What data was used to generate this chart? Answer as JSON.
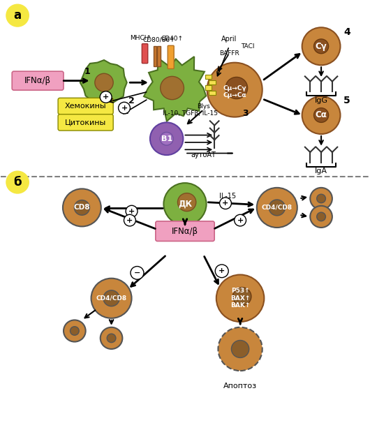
{
  "background_color": "#ffffff",
  "panel_a_label": "а",
  "panel_b_label": "б",
  "ifn_box_color": "#f0a0c0",
  "ifn_text": "IFNα/β",
  "cell_fill_outer": "#8db050",
  "cell_fill_inner": "#a07030",
  "chemokine_box_color": "#f5e642",
  "chemokine_text": "Хемокины",
  "cytokine_text": "Цитокины",
  "b1_color": "#9070b0",
  "b1_text": "B1",
  "autoat_text": "аутоАТ",
  "switch_text": "Cμ→Cγ\nCμ→Cα",
  "switch_num": "3",
  "label1": "1",
  "label2": "2",
  "label4": "4",
  "label5": "5",
  "IgG_text": "IgG",
  "IgA_text": "IgA",
  "Cy_text": "Cγ",
  "Ca_text": "Cα",
  "mhci_text": "MHCI↑",
  "cd80_text": "CD80/86↑",
  "cd40_text": "CD40↑",
  "april_text": "April",
  "taci_text": "TACI",
  "baffr_text": "BAFFR",
  "blys_text": "Blys",
  "il10_text": "IL-10, TGFβ, IL-15",
  "dk_text": "ДК",
  "cd8_text": "CD8",
  "cd4cd8_text": "CD4/CD8",
  "il15_text": "IL-15",
  "ifnab_b_text": "IFNα/β",
  "cd4cd8_b_text": "CD4/CD8",
  "p53_text": "P53↑\nBAX↑\nBAK↑",
  "apoptoz_text": "Апоптоз",
  "dashed_line_y": 0.415,
  "panel_label_color": "#f5e642",
  "panel_label_text_color": "#000000",
  "brown_cell": "#c8863c",
  "brown_dark": "#8b5e2a",
  "green_outer": "#7db040",
  "green_dark": "#5a8030",
  "purple_cell": "#8060a0",
  "arrow_color": "#000000",
  "receptor_colors": [
    "#e05050",
    "#c87830",
    "#f0a030",
    "#9050a0"
  ],
  "plus_circle_color": "#ffffff",
  "plus_text_color": "#000000"
}
